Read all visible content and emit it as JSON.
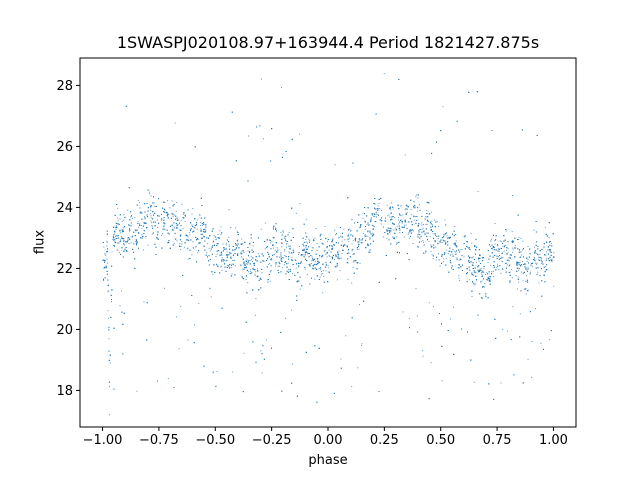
{
  "chart_data": {
    "type": "scatter",
    "title": "1SWASPJ020108.97+163944.4 Period 1821427.875s",
    "xlabel": "phase",
    "ylabel": "flux",
    "xlim": [
      -1.1,
      1.1
    ],
    "ylim": [
      16.8,
      28.9
    ],
    "xticks": [
      -1.0,
      -0.75,
      -0.5,
      -0.25,
      0.0,
      0.25,
      0.5,
      0.75,
      1.0
    ],
    "xtick_labels": [
      "−1.00",
      "−0.75",
      "−0.50",
      "−0.25",
      "0.00",
      "0.25",
      "0.50",
      "0.75",
      "1.00"
    ],
    "yticks": [
      18,
      20,
      22,
      24,
      26,
      28
    ],
    "ytick_labels": [
      "18",
      "20",
      "22",
      "24",
      "26",
      "28"
    ],
    "grid": false,
    "point_color": "#1f77b4",
    "series": [
      {
        "description_points_phase_flux": [
          [
            -1.0,
            22.3
          ],
          [
            -0.98,
            22.6
          ],
          [
            -0.97,
            18.2
          ],
          [
            -0.96,
            22.4
          ],
          [
            -0.95,
            23.1
          ],
          [
            -0.92,
            23.3
          ],
          [
            -0.9,
            22.8
          ],
          [
            -0.88,
            23.4
          ],
          [
            -0.86,
            23.0
          ],
          [
            -0.84,
            23.6
          ],
          [
            -0.82,
            23.2
          ],
          [
            -0.8,
            24.3
          ],
          [
            -0.78,
            23.7
          ],
          [
            -0.76,
            23.2
          ],
          [
            -0.74,
            23.5
          ],
          [
            -0.72,
            23.8
          ],
          [
            -0.7,
            23.3
          ],
          [
            -0.68,
            23.6
          ],
          [
            -0.66,
            23.1
          ],
          [
            -0.64,
            23.4
          ],
          [
            -0.62,
            22.9
          ],
          [
            -0.6,
            23.3
          ],
          [
            -0.58,
            22.8
          ],
          [
            -0.56,
            23.5
          ],
          [
            -0.54,
            22.7
          ],
          [
            -0.52,
            23.0
          ],
          [
            -0.5,
            22.5
          ],
          [
            -0.48,
            22.9
          ],
          [
            -0.46,
            22.3
          ],
          [
            -0.44,
            22.6
          ],
          [
            -0.42,
            22.1
          ],
          [
            -0.4,
            22.8
          ],
          [
            -0.38,
            22.4
          ],
          [
            -0.36,
            22.0
          ],
          [
            -0.34,
            22.5
          ],
          [
            -0.32,
            21.8
          ],
          [
            -0.3,
            22.2
          ],
          [
            -0.28,
            22.6
          ],
          [
            -0.26,
            22.3
          ],
          [
            -0.24,
            22.9
          ],
          [
            -0.22,
            22.4
          ],
          [
            -0.2,
            22.7
          ],
          [
            -0.18,
            22.1
          ],
          [
            -0.16,
            22.5
          ],
          [
            -0.14,
            21.9
          ],
          [
            -0.12,
            22.3
          ],
          [
            -0.1,
            22.8
          ],
          [
            -0.08,
            22.2
          ],
          [
            -0.06,
            22.6
          ],
          [
            -0.04,
            22.1
          ],
          [
            -0.02,
            22.5
          ],
          [
            0.0,
            22.3
          ],
          [
            0.02,
            22.6
          ],
          [
            0.04,
            22.4
          ],
          [
            0.06,
            22.9
          ],
          [
            0.08,
            22.5
          ],
          [
            0.1,
            23.0
          ],
          [
            0.12,
            22.7
          ],
          [
            0.14,
            23.1
          ],
          [
            0.16,
            23.4
          ],
          [
            0.18,
            23.0
          ],
          [
            0.2,
            23.6
          ],
          [
            0.22,
            24.2
          ],
          [
            0.24,
            23.8
          ],
          [
            0.26,
            23.3
          ],
          [
            0.28,
            23.6
          ],
          [
            0.3,
            23.2
          ],
          [
            0.32,
            23.5
          ],
          [
            0.34,
            23.7
          ],
          [
            0.36,
            23.3
          ],
          [
            0.38,
            23.8
          ],
          [
            0.4,
            23.4
          ],
          [
            0.42,
            23.1
          ],
          [
            0.44,
            23.5
          ],
          [
            0.46,
            22.9
          ],
          [
            0.48,
            23.2
          ],
          [
            0.5,
            22.6
          ],
          [
            0.52,
            23.0
          ],
          [
            0.54,
            22.5
          ],
          [
            0.56,
            22.8
          ],
          [
            0.58,
            22.2
          ],
          [
            0.6,
            22.7
          ],
          [
            0.62,
            22.3
          ],
          [
            0.64,
            22.0
          ],
          [
            0.66,
            22.4
          ],
          [
            0.68,
            21.9
          ],
          [
            0.7,
            21.6
          ],
          [
            0.72,
            22.2
          ],
          [
            0.74,
            22.7
          ],
          [
            0.76,
            22.4
          ],
          [
            0.78,
            22.9
          ],
          [
            0.8,
            22.3
          ],
          [
            0.82,
            22.7
          ],
          [
            0.84,
            22.1
          ],
          [
            0.86,
            22.5
          ],
          [
            0.88,
            21.8
          ],
          [
            0.9,
            22.2
          ],
          [
            0.92,
            22.6
          ],
          [
            0.94,
            22.0
          ],
          [
            0.96,
            22.4
          ],
          [
            0.98,
            22.7
          ],
          [
            1.0,
            22.3
          ]
        ]
      }
    ]
  }
}
